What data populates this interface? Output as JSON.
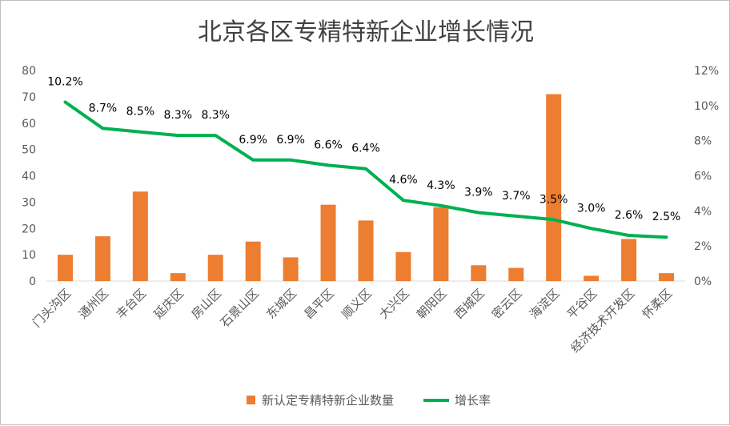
{
  "chart_data": {
    "type": "bar",
    "title": "北京各区专精特新企业增长情况",
    "categories": [
      "门头沟区",
      "通州区",
      "丰台区",
      "延庆区",
      "房山区",
      "石景山区",
      "东城区",
      "昌平区",
      "顺义区",
      "大兴区",
      "朝阳区",
      "西城区",
      "密云区",
      "海淀区",
      "平谷区",
      "经济技术开发区",
      "怀柔区"
    ],
    "series": [
      {
        "name": "新认定专精特新企业数量",
        "type": "bar",
        "axis": "left",
        "color": "#ED7D31",
        "values": [
          10,
          17,
          34,
          3,
          10,
          15,
          9,
          29,
          23,
          11,
          28,
          6,
          5,
          71,
          2,
          16,
          3
        ]
      },
      {
        "name": "增长率",
        "type": "line",
        "axis": "right",
        "color": "#00B050",
        "values": [
          10.2,
          8.7,
          8.5,
          8.3,
          8.3,
          6.9,
          6.9,
          6.6,
          6.4,
          4.6,
          4.3,
          3.9,
          3.7,
          3.5,
          3.0,
          2.6,
          2.5
        ],
        "labels": [
          "10.2%",
          "8.7%",
          "8.5%",
          "8.3%",
          "8.3%",
          "6.9%",
          "6.9%",
          "6.6%",
          "6.4%",
          "4.6%",
          "4.3%",
          "3.9%",
          "3.7%",
          "3.5%",
          "3.0%",
          "2.6%",
          "2.5%"
        ]
      }
    ],
    "left_axis": {
      "ylim": [
        0,
        80
      ],
      "ticks": [
        "0",
        "10",
        "20",
        "30",
        "40",
        "50",
        "60",
        "70",
        "80"
      ]
    },
    "right_axis": {
      "ylim": [
        0,
        12
      ],
      "ticks": [
        "0%",
        "2%",
        "4%",
        "6%",
        "8%",
        "10%",
        "12%"
      ]
    },
    "gridlines": false,
    "legend_position": "bottom"
  }
}
